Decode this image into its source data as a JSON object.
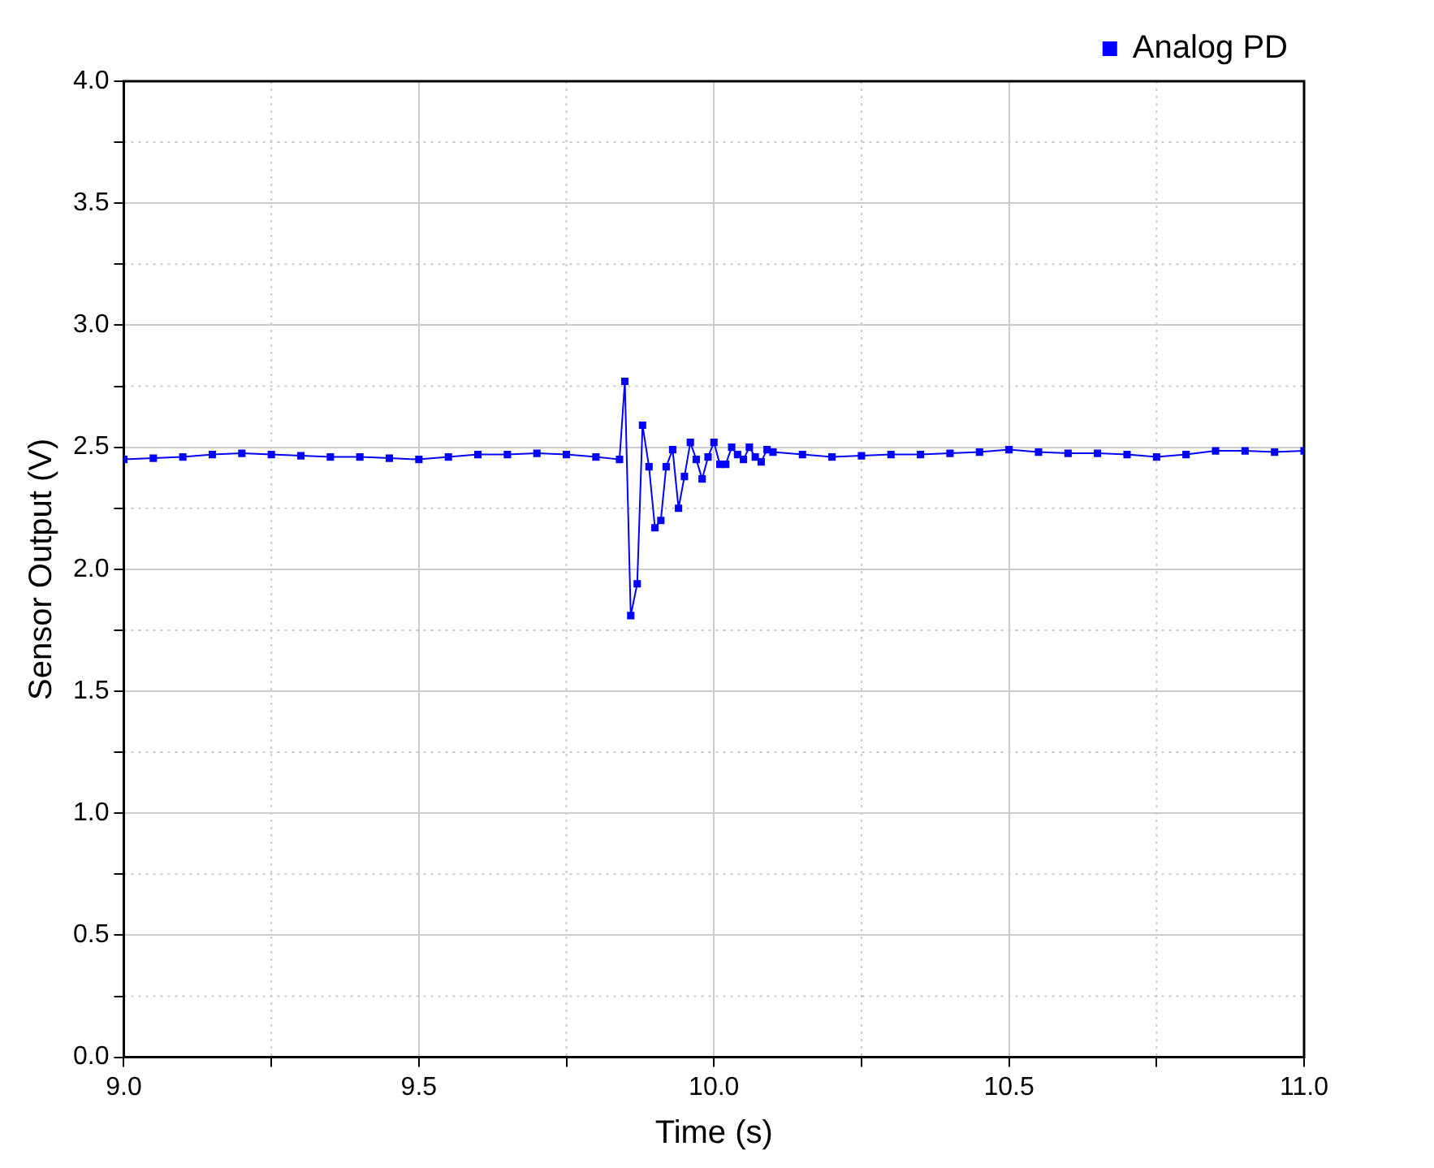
{
  "chart_data": {
    "type": "line",
    "xlabel": "Time (s)",
    "ylabel": "Sensor Output (V)",
    "xlim": [
      9.0,
      11.0
    ],
    "ylim": [
      0.0,
      4.0
    ],
    "xticks": [
      {
        "value": 9.0,
        "label": "9.0"
      },
      {
        "value": 9.25,
        "label": null
      },
      {
        "value": 9.5,
        "label": "9.5"
      },
      {
        "value": 9.75,
        "label": null
      },
      {
        "value": 10.0,
        "label": "10.0"
      },
      {
        "value": 10.25,
        "label": null
      },
      {
        "value": 10.5,
        "label": "10.5"
      },
      {
        "value": 10.75,
        "label": null
      },
      {
        "value": 11.0,
        "label": "11.0"
      }
    ],
    "yticks": [
      {
        "value": 0.0,
        "label": "0.0"
      },
      {
        "value": 0.25,
        "label": null
      },
      {
        "value": 0.5,
        "label": "0.5"
      },
      {
        "value": 0.75,
        "label": null
      },
      {
        "value": 1.0,
        "label": "1.0"
      },
      {
        "value": 1.25,
        "label": null
      },
      {
        "value": 1.5,
        "label": "1.5"
      },
      {
        "value": 1.75,
        "label": null
      },
      {
        "value": 2.0,
        "label": "2.0"
      },
      {
        "value": 2.25,
        "label": null
      },
      {
        "value": 2.5,
        "label": "2.5"
      },
      {
        "value": 2.75,
        "label": null
      },
      {
        "value": 3.0,
        "label": "3.0"
      },
      {
        "value": 3.25,
        "label": null
      },
      {
        "value": 3.5,
        "label": "3.5"
      },
      {
        "value": 3.75,
        "label": null
      },
      {
        "value": 4.0,
        "label": "4.0"
      }
    ],
    "grid": true,
    "legend": "top right",
    "marker": "square",
    "line_style": "solid",
    "series": [
      {
        "name": "Analog PD",
        "color": "#0000ff",
        "x": [
          9.0,
          9.05,
          9.1,
          9.15,
          9.2,
          9.25,
          9.3,
          9.35,
          9.4,
          9.45,
          9.5,
          9.55,
          9.6,
          9.65,
          9.7,
          9.75,
          9.8,
          9.84,
          9.849,
          9.859,
          9.87,
          9.879,
          9.89,
          9.9,
          9.91,
          9.919,
          9.93,
          9.94,
          9.95,
          9.96,
          9.97,
          9.98,
          9.99,
          10.0,
          10.01,
          10.02,
          10.03,
          10.04,
          10.05,
          10.06,
          10.07,
          10.08,
          10.09,
          10.1,
          10.15,
          10.2,
          10.25,
          10.3,
          10.35,
          10.4,
          10.45,
          10.5,
          10.55,
          10.6,
          10.65,
          10.7,
          10.75,
          10.8,
          10.85,
          10.9,
          10.95,
          11.0
        ],
        "values": [
          2.45,
          2.455,
          2.46,
          2.47,
          2.475,
          2.47,
          2.465,
          2.46,
          2.46,
          2.455,
          2.45,
          2.46,
          2.47,
          2.47,
          2.475,
          2.47,
          2.46,
          2.45,
          2.77,
          1.81,
          1.94,
          2.59,
          2.42,
          2.17,
          2.2,
          2.42,
          2.49,
          2.25,
          2.38,
          2.52,
          2.45,
          2.37,
          2.46,
          2.52,
          2.43,
          2.43,
          2.5,
          2.47,
          2.45,
          2.5,
          2.46,
          2.44,
          2.49,
          2.48,
          2.47,
          2.46,
          2.465,
          2.47,
          2.47,
          2.475,
          2.48,
          2.49,
          2.48,
          2.475,
          2.475,
          2.47,
          2.46,
          2.47,
          2.485,
          2.485,
          2.48,
          2.485
        ]
      }
    ]
  }
}
